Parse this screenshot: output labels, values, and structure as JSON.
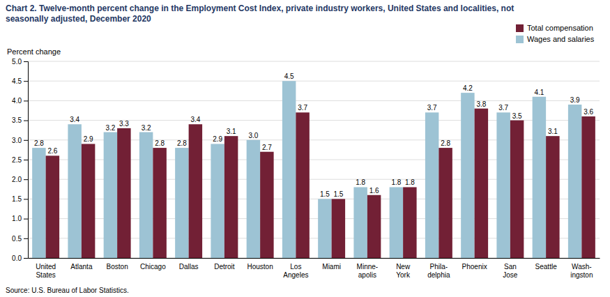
{
  "chart_data": {
    "type": "bar",
    "title": "Chart 2. Twelve-month percent change in the Employment Cost Index, private industry workers, United States and localities, not\nseasonally adjusted, December 2020",
    "ylabel": "Percent change",
    "source": "Source: U.S. Bureau of Labor Statistics.",
    "categories": [
      "United\nStates",
      "Atlanta",
      "Boston",
      "Chicago",
      "Dallas",
      "Detroit",
      "Houston",
      "Los\nAngeles",
      "Miami",
      "Minne-\napolis",
      "New\nYork",
      "Phila-\ndelphia",
      "Phoenix",
      "San\nJose",
      "Seattle",
      "Wash-\ningston"
    ],
    "series": [
      {
        "name": "Wages and salaries",
        "color": "#9DC3D4",
        "values": [
          2.8,
          3.4,
          3.2,
          3.2,
          2.8,
          2.9,
          3.0,
          4.5,
          1.5,
          1.8,
          1.8,
          3.7,
          4.2,
          3.7,
          4.1,
          3.9
        ],
        "value_labels": [
          "2.8",
          "3.4",
          "3.2",
          "3.2",
          "2.8",
          "2.9",
          "3.0",
          "4.5",
          "1.5",
          "1.8",
          "1.8",
          "3.7",
          "4.2",
          "3.7",
          "4.1",
          "3.9"
        ]
      },
      {
        "name": "Total compensation",
        "color": "#722035",
        "values": [
          2.6,
          2.9,
          3.3,
          2.8,
          3.4,
          3.1,
          2.7,
          3.7,
          1.5,
          1.6,
          1.8,
          2.8,
          3.8,
          3.5,
          3.1,
          3.6
        ]
      }
    ],
    "ylim": [
      0,
      5.0
    ],
    "yticks": [
      {
        "value": 0,
        "label": "0.0"
      },
      0.5,
      {
        "value": 1,
        "label": "1.0"
      },
      1.5,
      {
        "value": 2,
        "label": "2.0"
      },
      2.5,
      {
        "value": 3,
        "label": "3.0"
      },
      3.5,
      {
        "value": 4,
        "label": "4.0"
      },
      4.5,
      {
        "value": 5,
        "label": "5.0"
      }
    ],
    "grid": true,
    "legend": "upper right",
    "data_labels": true
  }
}
